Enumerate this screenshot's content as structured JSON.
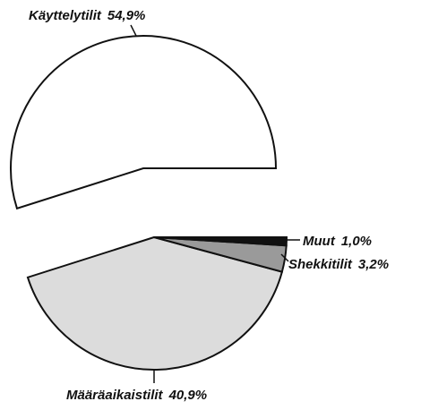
{
  "chart_data": {
    "type": "pie",
    "categories": [
      "Käyttelytilit",
      "Määräaikaistilit",
      "Shekkitilit",
      "Muut"
    ],
    "values": [
      54.9,
      40.9,
      3.2,
      1.0
    ],
    "value_labels": [
      "54,9%",
      "40,9%",
      "3,2%",
      "1,0%"
    ],
    "colors": [
      "#ffffff",
      "#dcdcdc",
      "#9a9a9a",
      "#111111"
    ]
  }
}
